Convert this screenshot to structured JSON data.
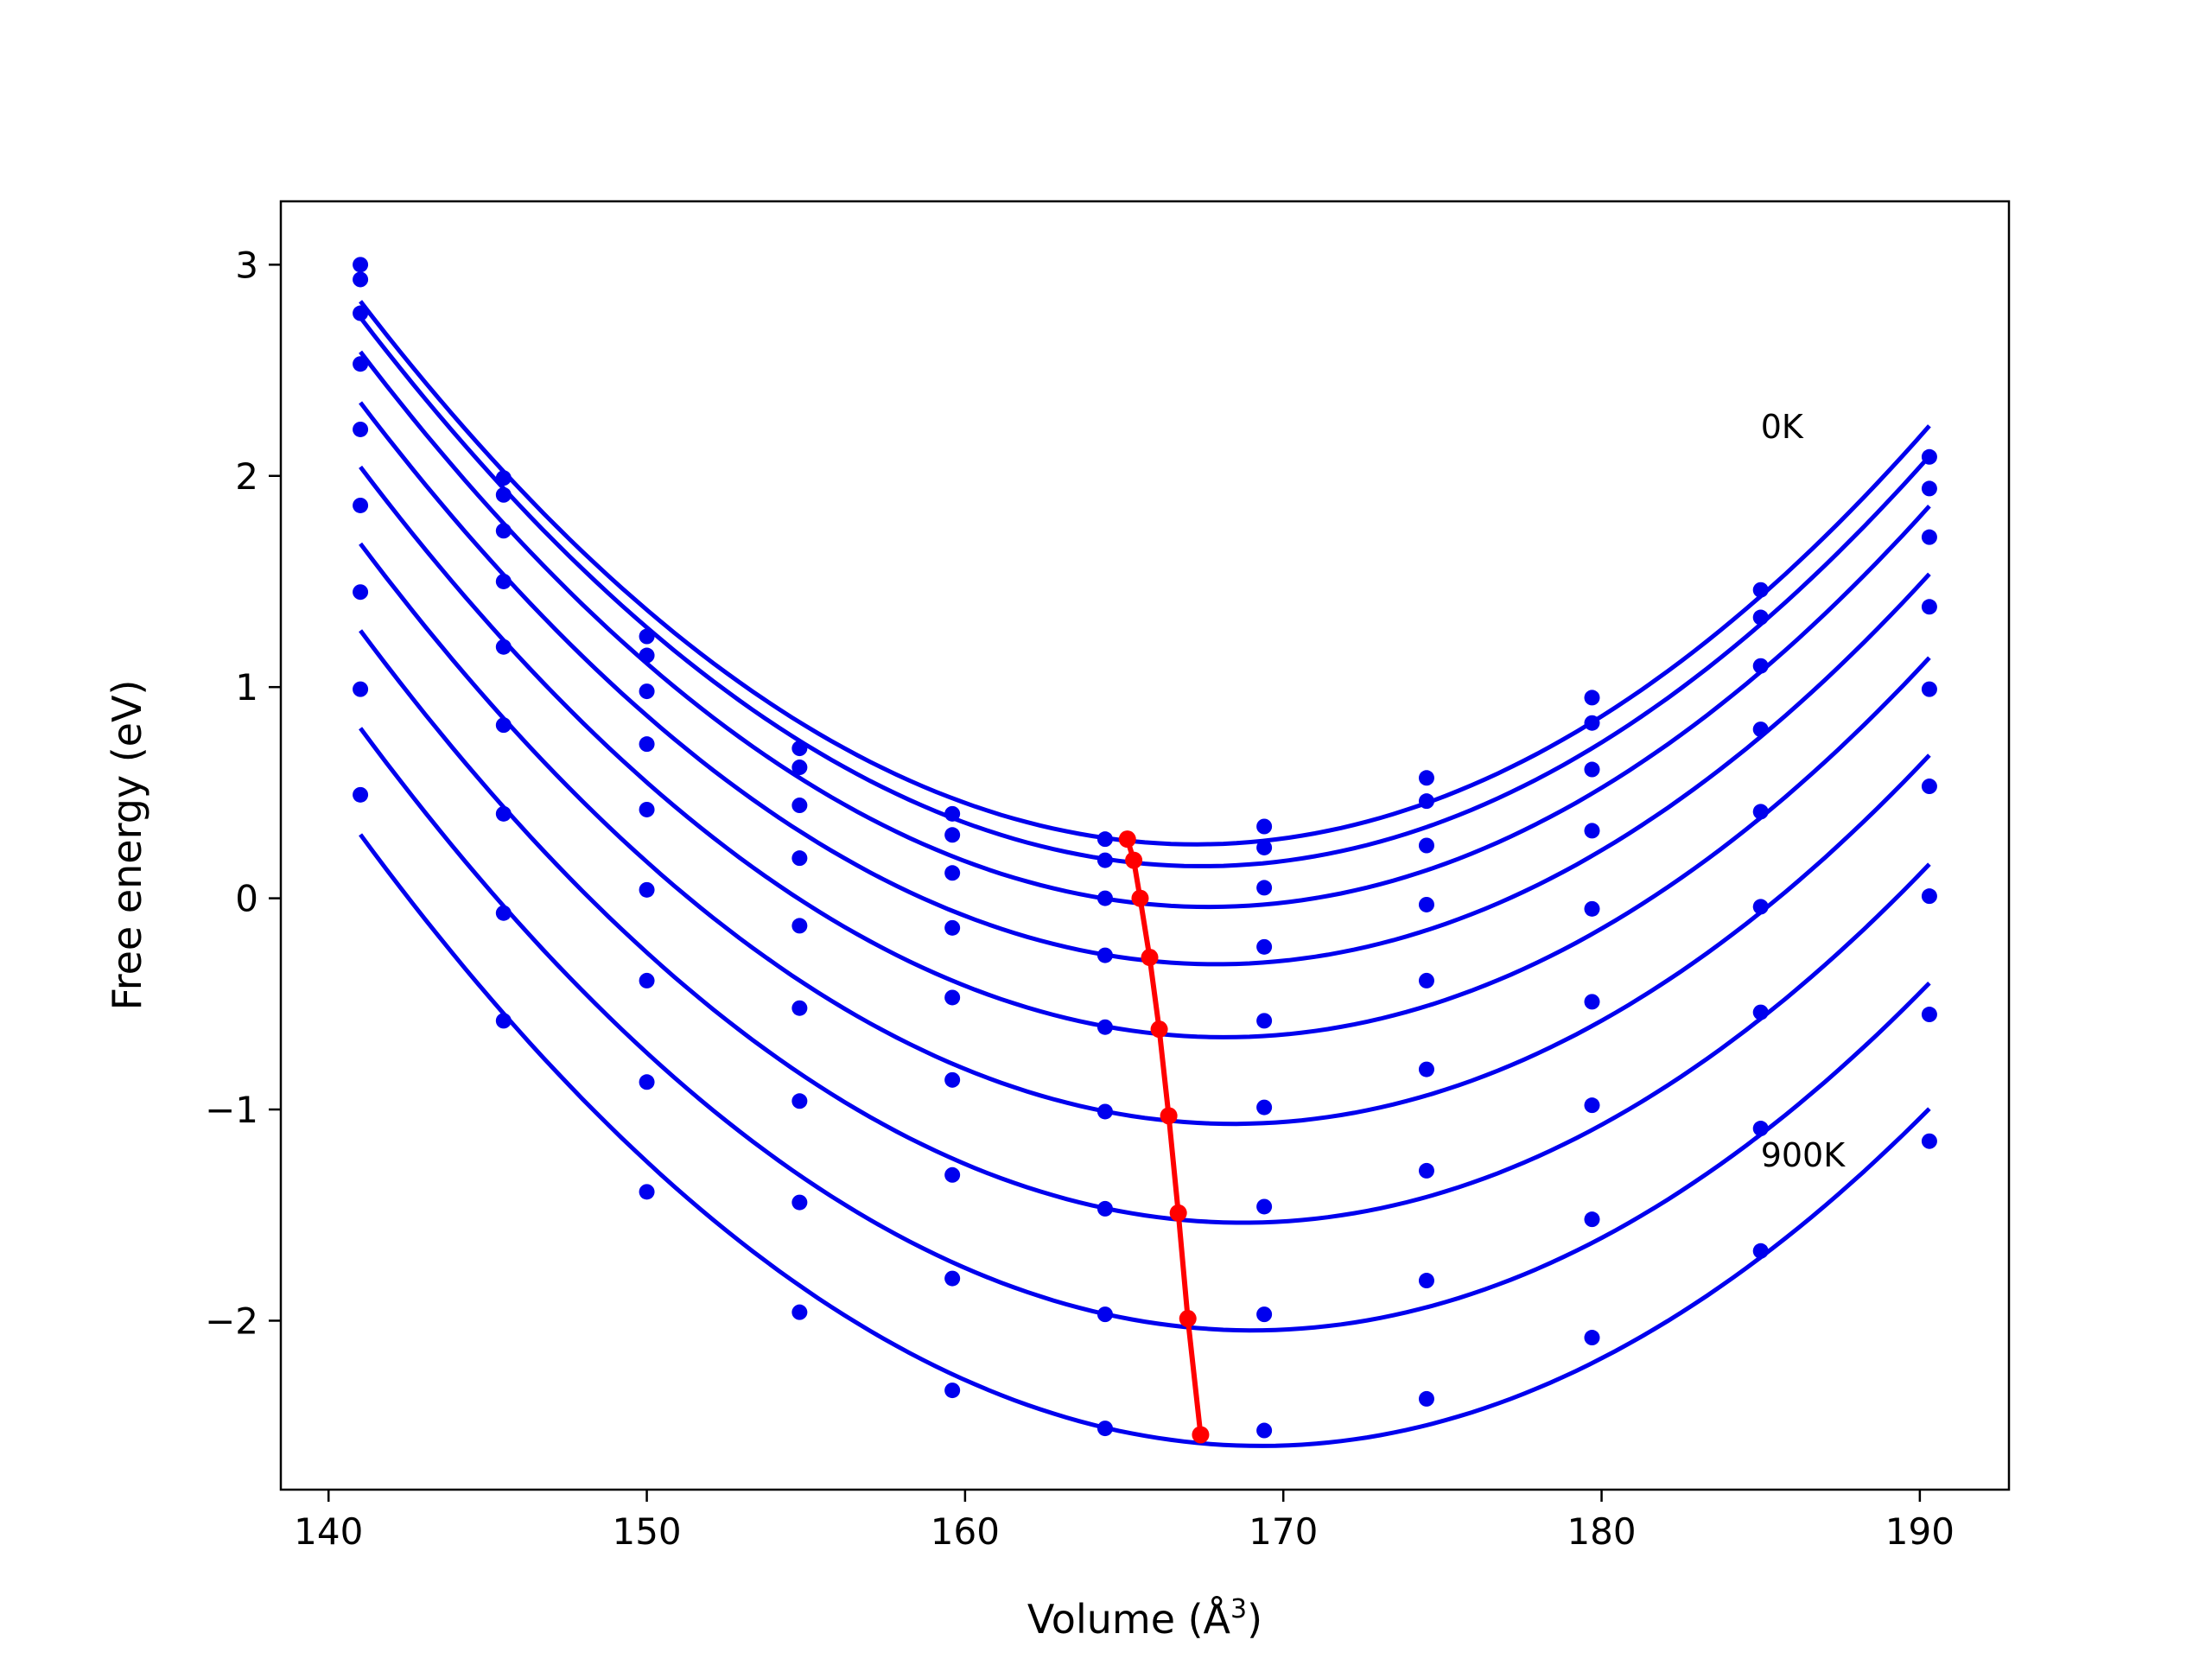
{
  "chart_data": {
    "type": "line",
    "xlabel": "Volume (Å",
    "xlabel_superscript": "3",
    "xlabel_suffix": ")",
    "ylabel": "Free energy (eV)",
    "xlim": [
      138.5,
      192.8
    ],
    "ylim": [
      -2.8,
      3.3
    ],
    "xticks": [
      140,
      150,
      160,
      170,
      180,
      190
    ],
    "xtick_labels": [
      "140",
      "150",
      "160",
      "170",
      "180",
      "190"
    ],
    "yticks": [
      -2,
      -1,
      0,
      1,
      2,
      3
    ],
    "ytick_labels": [
      "−2",
      "−1",
      "0",
      "1",
      "2",
      "3"
    ],
    "grid": false,
    "colors": {
      "series": "#0000ee",
      "minima": "#ff0000",
      "axes": "#000000"
    },
    "x": [
      141.0,
      145.5,
      150.0,
      154.8,
      159.6,
      164.4,
      169.4,
      174.5,
      179.7,
      185.0,
      190.3
    ],
    "annotations": [
      {
        "text": "0K",
        "x": 185.0,
        "y": 2.18
      },
      {
        "text": "900K",
        "x": 185.0,
        "y": -1.27
      }
    ],
    "series": [
      {
        "values": [
          3.0,
          1.99,
          1.24,
          0.71,
          0.4,
          0.28,
          0.34,
          0.57,
          0.95,
          1.46,
          2.09
        ]
      },
      {
        "values": [
          2.93,
          1.91,
          1.15,
          0.62,
          0.3,
          0.18,
          0.24,
          0.46,
          0.83,
          1.33,
          1.94
        ]
      },
      {
        "values": [
          2.77,
          1.74,
          0.98,
          0.44,
          0.12,
          0.0,
          0.05,
          0.25,
          0.61,
          1.1,
          1.71
        ]
      },
      {
        "values": [
          2.53,
          1.5,
          0.73,
          0.19,
          -0.14,
          -0.27,
          -0.23,
          -0.03,
          0.32,
          0.8,
          1.38
        ]
      },
      {
        "values": [
          2.22,
          1.19,
          0.42,
          -0.13,
          -0.47,
          -0.61,
          -0.58,
          -0.39,
          -0.05,
          0.41,
          0.99
        ]
      },
      {
        "values": [
          1.86,
          0.82,
          0.04,
          -0.52,
          -0.86,
          -1.01,
          -0.99,
          -0.81,
          -0.49,
          -0.04,
          0.53
        ]
      },
      {
        "values": [
          1.45,
          0.4,
          -0.39,
          -0.96,
          -1.31,
          -1.47,
          -1.46,
          -1.29,
          -0.98,
          -0.54,
          0.01
        ]
      },
      {
        "values": [
          0.99,
          -0.07,
          -0.87,
          -1.44,
          -1.8,
          -1.97,
          -1.97,
          -1.81,
          -1.52,
          -1.09,
          -0.55
        ]
      },
      {
        "values": [
          0.49,
          -0.58,
          -1.39,
          -1.96,
          -2.33,
          -2.51,
          -2.52,
          -2.37,
          -2.08,
          -1.67,
          -1.15
        ]
      }
    ],
    "minima": {
      "x": [
        165.1,
        165.3,
        165.5,
        165.8,
        166.1,
        166.4,
        166.7,
        167.0,
        167.4
      ],
      "y": [
        0.28,
        0.18,
        0.0,
        -0.28,
        -0.62,
        -1.03,
        -1.49,
        -1.99,
        -2.54
      ]
    }
  }
}
